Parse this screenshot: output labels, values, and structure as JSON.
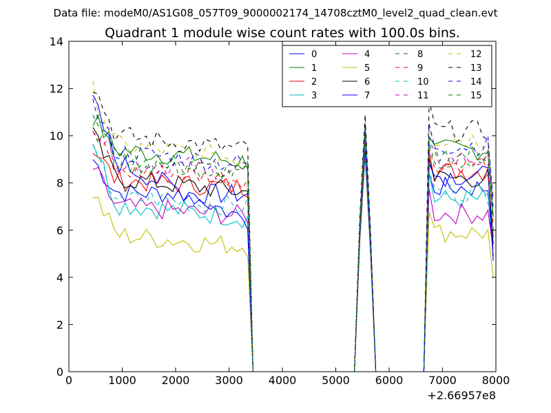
{
  "chart_data": {
    "type": "line",
    "suptitle": "Data file: modeM0/AS1G08_057T09_9000002174_14708cztM0_level2_quad_clean.evt",
    "title": "Quadrant 1 module wise count rates with 100.0s bins.",
    "xlabel": "",
    "ylabel": "",
    "x_offset_label": "+2.66957e8",
    "xlim": [
      0,
      8000
    ],
    "ylim": [
      0,
      14
    ],
    "xticks": [
      0,
      1000,
      2000,
      3000,
      4000,
      5000,
      6000,
      7000,
      8000
    ],
    "yticks": [
      0,
      2,
      4,
      6,
      8,
      10,
      12,
      14
    ],
    "legend_position": "top-right",
    "x": [
      450,
      550,
      650,
      750,
      850,
      950,
      1050,
      1150,
      1250,
      1350,
      1450,
      1550,
      1650,
      1750,
      1850,
      1950,
      2050,
      2150,
      2250,
      2350,
      2450,
      2550,
      2650,
      2750,
      2850,
      2950,
      3050,
      3150,
      3250,
      3350,
      3450,
      3550,
      3650,
      3750,
      3850,
      3950,
      4050,
      4150,
      4250,
      4350,
      4450,
      4550,
      4650,
      4750,
      4850,
      4950,
      5050,
      5150,
      5250,
      5350,
      5450,
      5550,
      5650,
      5750,
      5850,
      5950,
      6050,
      6150,
      6250,
      6350,
      6450,
      6550,
      6650,
      6750,
      6850,
      6950,
      7050,
      7150,
      7250,
      7350,
      7450,
      7550,
      7650,
      7750,
      7850,
      7950
    ],
    "segments": [
      {
        "start": 450,
        "end": 3350,
        "shape": "decay"
      },
      {
        "start": 3450,
        "end": 5350,
        "shape": "zero"
      },
      {
        "start": 5450,
        "end": 5750,
        "shape": "spike",
        "pattern": [
          0.6,
          1.0,
          0.55,
          0.0
        ]
      },
      {
        "start": 5850,
        "end": 6550,
        "shape": "zero"
      },
      {
        "start": 6650,
        "end": 7950,
        "shape": "recovery"
      }
    ],
    "series": [
      {
        "name": "0",
        "color": "#0000ff",
        "dash": "solid",
        "start": 9.0,
        "level": 7.6,
        "end": 7.5,
        "spike": 9.6,
        "peak2": 8.3,
        "after": 7.8,
        "last": 4.9
      },
      {
        "name": "1",
        "color": "#008000",
        "dash": "solid",
        "start": 10.8,
        "level": 9.4,
        "end": 8.9,
        "spike": 10.4,
        "peak2": 10.0,
        "after": 9.4,
        "last": 6.6
      },
      {
        "name": "2",
        "color": "#ff0000",
        "dash": "solid",
        "start": 9.5,
        "level": 8.1,
        "end": 7.8,
        "spike": 9.7,
        "peak2": 9.5,
        "after": 8.5,
        "last": 5.7
      },
      {
        "name": "3",
        "color": "#00bfbf",
        "dash": "solid",
        "start": 9.9,
        "level": 7.1,
        "end": 6.5,
        "spike": 9.5,
        "peak2": 8.5,
        "after": 7.3,
        "last": 5.9
      },
      {
        "name": "4",
        "color": "#bf00bf",
        "dash": "solid",
        "start": 8.6,
        "level": 7.0,
        "end": 6.6,
        "spike": 9.3,
        "peak2": 7.7,
        "after": 6.7,
        "last": 5.2
      },
      {
        "name": "5",
        "color": "#bfbf00",
        "dash": "solid",
        "start": 7.6,
        "level": 5.8,
        "end": 5.3,
        "spike": 9.1,
        "peak2": 6.9,
        "after": 5.9,
        "last": 4.0
      },
      {
        "name": "6",
        "color": "#000000",
        "dash": "solid",
        "start": 10.0,
        "level": 8.2,
        "end": 7.6,
        "spike": 9.9,
        "peak2": 9.2,
        "after": 8.2,
        "last": 5.4
      },
      {
        "name": "7",
        "color": "#0000ff",
        "dash": "solid",
        "start": 11.5,
        "level": 8.9,
        "end": 6.4,
        "spike": 9.4,
        "peak2": 9.0,
        "after": 8.3,
        "last": 4.7
      },
      {
        "name": "8",
        "color": "#008000",
        "dash": "dashed",
        "start": 10.5,
        "level": 9.0,
        "end": 8.5,
        "spike": 10.0,
        "peak2": 9.9,
        "after": 9.0,
        "last": 6.2
      },
      {
        "name": "9",
        "color": "#ff0000",
        "dash": "dashed",
        "start": 10.2,
        "level": 8.5,
        "end": 8.2,
        "spike": 9.9,
        "peak2": 9.4,
        "after": 8.8,
        "last": 6.0
      },
      {
        "name": "10",
        "color": "#00bfbf",
        "dash": "dashed",
        "start": 9.2,
        "level": 7.4,
        "end": 7.0,
        "spike": 9.8,
        "peak2": 8.6,
        "after": 7.6,
        "last": 5.8
      },
      {
        "name": "11",
        "color": "#bf00bf",
        "dash": "dashed",
        "start": 10.6,
        "level": 8.9,
        "end": 8.5,
        "spike": 10.2,
        "peak2": 9.6,
        "after": 9.0,
        "last": 6.4
      },
      {
        "name": "12",
        "color": "#bfbf00",
        "dash": "dashed",
        "start": 11.9,
        "level": 9.6,
        "end": 9.0,
        "spike": 10.6,
        "peak2": 10.6,
        "after": 9.9,
        "last": 7.0
      },
      {
        "name": "13",
        "color": "#000000",
        "dash": "dashed",
        "start": 12.2,
        "level": 10.0,
        "end": 9.4,
        "spike": 10.9,
        "peak2": 11.5,
        "after": 10.2,
        "last": 7.3
      },
      {
        "name": "14",
        "color": "#0000ff",
        "dash": "dashed",
        "start": 11.3,
        "level": 9.3,
        "end": 8.8,
        "spike": 10.5,
        "peak2": 10.4,
        "after": 9.6,
        "last": 6.9
      },
      {
        "name": "15",
        "color": "#008000",
        "dash": "dashed",
        "start": 11.0,
        "level": 8.9,
        "end": 8.4,
        "spike": 10.2,
        "peak2": 9.9,
        "after": 9.2,
        "last": 6.5
      }
    ]
  }
}
